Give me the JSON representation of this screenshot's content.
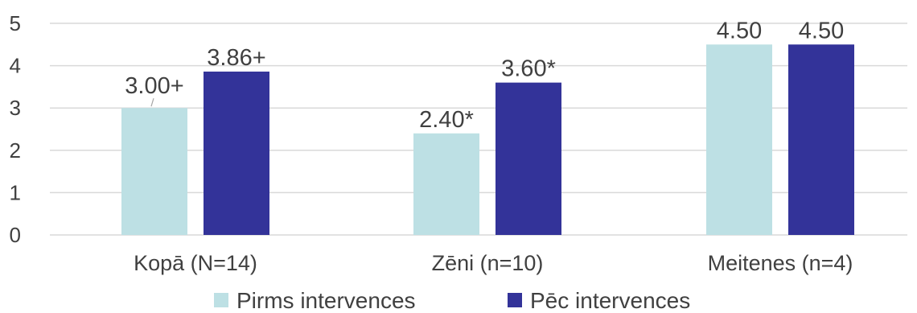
{
  "chart_data": {
    "type": "bar",
    "categories": [
      "Kopā (N=14)",
      "Zēni (n=10)",
      "Meitenes (n=4)"
    ],
    "series": [
      {
        "name": "Pirms intervences",
        "color": "#bde0e4",
        "values": [
          3.0,
          2.4,
          4.5
        ],
        "labels": [
          "3.00+",
          "2.40*",
          "4.50"
        ]
      },
      {
        "name": "Pēc intervences",
        "color": "#333399",
        "values": [
          3.86,
          3.6,
          4.5
        ],
        "labels": [
          "3.86+",
          "3.60*",
          "4.50"
        ]
      }
    ],
    "yticks": [
      "0",
      "1",
      "2",
      "3",
      "4",
      "5"
    ],
    "ylim": [
      0,
      5
    ],
    "grid": true,
    "legend_position": "bottom",
    "title": "",
    "xlabel": "",
    "ylabel": ""
  }
}
